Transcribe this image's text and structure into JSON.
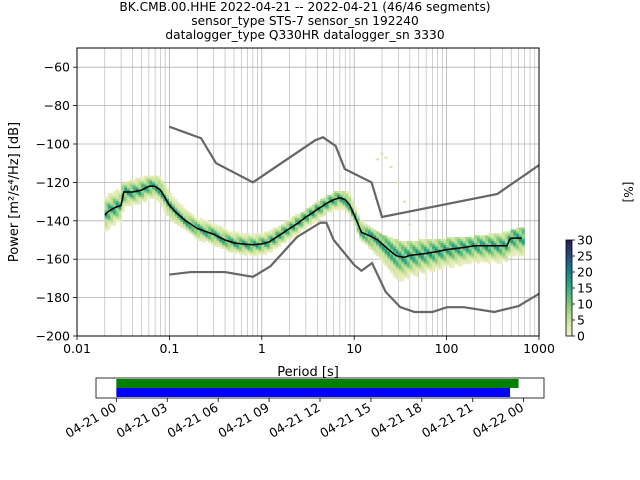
{
  "chart_data": [
    {
      "type": "ppsd",
      "title_lines": [
        "BK.CMB.00.HHE   2022-04-21 -- 2022-04-21  (46/46 segments)",
        "sensor_type STS-7 sensor_sn 192240",
        "datalogger_type Q330HR datalogger_sn 3330"
      ],
      "xlabel": "Period [s]",
      "ylabel": "Power [m²/s⁴/Hz] [dB]",
      "x_scale": "log",
      "xlim": [
        0.01,
        1000
      ],
      "ylim": [
        -200,
        -50
      ],
      "x_ticks": [
        {
          "value": 0.01,
          "label": "0.01"
        },
        {
          "value": 0.1,
          "label": "0.1"
        },
        {
          "value": 1,
          "label": "1"
        },
        {
          "value": 10,
          "label": "10"
        },
        {
          "value": 100,
          "label": "100"
        },
        {
          "value": 1000,
          "label": "1000"
        }
      ],
      "y_ticks": [
        -60,
        -80,
        -100,
        -120,
        -140,
        -160,
        -180,
        -200
      ],
      "grid": true,
      "colorbar": {
        "label": "[%]",
        "range": [
          0,
          30
        ],
        "ticks": [
          0,
          5,
          10,
          15,
          20,
          25,
          30
        ],
        "colors": [
          "#f5f2cc",
          "#c8e29a",
          "#7ec97b",
          "#33ad83",
          "#1a7f86",
          "#284b82",
          "#2b1d51"
        ]
      },
      "noise_models": {
        "color": "#666666",
        "high_noise_model": [
          [
            0.1,
            -91
          ],
          [
            0.22,
            -97
          ],
          [
            0.32,
            -110
          ],
          [
            0.8,
            -120
          ],
          [
            3.8,
            -98
          ],
          [
            4.6,
            -96.5
          ],
          [
            6.3,
            -101
          ],
          [
            7.9,
            -113
          ],
          [
            15.4,
            -120
          ],
          [
            20,
            -138
          ],
          [
            354.8,
            -126
          ],
          [
            1000,
            -111
          ]
        ],
        "low_noise_model": [
          [
            0.1,
            -168
          ],
          [
            0.17,
            -166.7
          ],
          [
            0.4,
            -166.7
          ],
          [
            0.8,
            -169.2
          ],
          [
            1.24,
            -163.7
          ],
          [
            2.4,
            -148.5
          ],
          [
            4.3,
            -141
          ],
          [
            5,
            -141
          ],
          [
            6,
            -150
          ],
          [
            10,
            -163
          ],
          [
            12,
            -166
          ],
          [
            15.6,
            -162
          ],
          [
            21.9,
            -177
          ],
          [
            31.6,
            -185
          ],
          [
            45,
            -187.5
          ],
          [
            70,
            -187.5
          ],
          [
            101,
            -185
          ],
          [
            154,
            -185
          ],
          [
            328,
            -187.5
          ],
          [
            600,
            -184.4
          ],
          [
            1000,
            -178
          ]
        ]
      },
      "mean_curve": {
        "color": "#000000",
        "points": [
          [
            0.02,
            -137
          ],
          [
            0.022,
            -135
          ],
          [
            0.026,
            -133
          ],
          [
            0.03,
            -132
          ],
          [
            0.032,
            -125
          ],
          [
            0.04,
            -125
          ],
          [
            0.045,
            -124.5
          ],
          [
            0.05,
            -124
          ],
          [
            0.055,
            -123
          ],
          [
            0.06,
            -122
          ],
          [
            0.07,
            -122
          ],
          [
            0.08,
            -124
          ],
          [
            0.09,
            -128
          ],
          [
            0.1,
            -132
          ],
          [
            0.12,
            -136
          ],
          [
            0.15,
            -140
          ],
          [
            0.2,
            -144
          ],
          [
            0.3,
            -147
          ],
          [
            0.4,
            -150
          ],
          [
            0.5,
            -151.5
          ],
          [
            0.6,
            -152
          ],
          [
            0.8,
            -152.5
          ],
          [
            1,
            -152
          ],
          [
            1.2,
            -151
          ],
          [
            1.5,
            -148
          ],
          [
            2,
            -144
          ],
          [
            2.5,
            -141
          ],
          [
            3,
            -138
          ],
          [
            3.5,
            -136
          ],
          [
            4,
            -134
          ],
          [
            4.5,
            -132.5
          ],
          [
            5,
            -131
          ],
          [
            6,
            -129
          ],
          [
            7,
            -128
          ],
          [
            8,
            -129
          ],
          [
            9,
            -132
          ],
          [
            10,
            -137
          ],
          [
            12,
            -146
          ],
          [
            15,
            -148
          ],
          [
            18,
            -150
          ],
          [
            20,
            -152
          ],
          [
            25,
            -156
          ],
          [
            28,
            -158
          ],
          [
            30,
            -158.5
          ],
          [
            35,
            -159
          ],
          [
            40,
            -158
          ],
          [
            50,
            -157.5
          ],
          [
            60,
            -157
          ],
          [
            80,
            -156
          ],
          [
            100,
            -155
          ],
          [
            150,
            -154
          ],
          [
            200,
            -153
          ],
          [
            300,
            -153
          ],
          [
            400,
            -153
          ],
          [
            450,
            -153
          ],
          [
            480,
            -150
          ],
          [
            500,
            -149
          ],
          [
            650,
            -149
          ]
        ]
      },
      "histogram_band": {
        "upper": [
          [
            0.02,
            -125
          ],
          [
            0.03,
            -122
          ],
          [
            0.04,
            -119
          ],
          [
            0.05,
            -118
          ],
          [
            0.06,
            -117
          ],
          [
            0.08,
            -118
          ],
          [
            0.1,
            -123
          ],
          [
            0.15,
            -132
          ],
          [
            0.2,
            -137
          ],
          [
            0.3,
            -141
          ],
          [
            0.5,
            -146
          ],
          [
            0.8,
            -148
          ],
          [
            1,
            -147
          ],
          [
            1.5,
            -144
          ],
          [
            2,
            -140
          ],
          [
            3,
            -135
          ],
          [
            4,
            -131
          ],
          [
            5,
            -128
          ],
          [
            7,
            -125
          ],
          [
            9,
            -126
          ],
          [
            10,
            -130
          ],
          [
            12,
            -140
          ],
          [
            15,
            -144
          ],
          [
            20,
            -148
          ],
          [
            30,
            -151
          ],
          [
            50,
            -151
          ],
          [
            100,
            -150
          ],
          [
            200,
            -149
          ],
          [
            400,
            -147
          ],
          [
            700,
            -144
          ]
        ],
        "lower": [
          [
            0.02,
            -145
          ],
          [
            0.03,
            -140
          ],
          [
            0.04,
            -134
          ],
          [
            0.05,
            -133
          ],
          [
            0.06,
            -131
          ],
          [
            0.08,
            -133
          ],
          [
            0.1,
            -138
          ],
          [
            0.15,
            -144
          ],
          [
            0.2,
            -149
          ],
          [
            0.3,
            -152
          ],
          [
            0.5,
            -156
          ],
          [
            0.8,
            -158
          ],
          [
            1,
            -157
          ],
          [
            1.5,
            -154
          ],
          [
            2,
            -150
          ],
          [
            3,
            -145
          ],
          [
            4,
            -141
          ],
          [
            5,
            -138
          ],
          [
            7,
            -135
          ],
          [
            9,
            -136
          ],
          [
            10,
            -140
          ],
          [
            12,
            -150
          ],
          [
            15,
            -160
          ],
          [
            20,
            -168
          ],
          [
            30,
            -178
          ],
          [
            50,
            -174
          ],
          [
            100,
            -170
          ],
          [
            200,
            -168
          ],
          [
            400,
            -166
          ],
          [
            700,
            -165
          ]
        ]
      },
      "scatter_outlier": [
        [
          18,
          -108
        ],
        [
          20,
          -105
        ],
        [
          22,
          -107
        ],
        [
          25,
          -112
        ],
        [
          30,
          -120
        ],
        [
          35,
          -130
        ],
        [
          40,
          -142
        ]
      ]
    },
    {
      "type": "timeline",
      "x_ticks": [
        "04-21 00",
        "04-21 03",
        "04-21 06",
        "04-21 09",
        "04-21 12",
        "04-21 15",
        "04-21 18",
        "04-21 21",
        "04-22 00"
      ],
      "xlim_hours": [
        -1.2,
        25.2
      ],
      "series": [
        {
          "color": "#008000",
          "start_hour": 0,
          "end_hour": 23.7
        },
        {
          "color": "#0000ff",
          "start_hour": 0,
          "end_hour": 23.2
        }
      ]
    }
  ]
}
